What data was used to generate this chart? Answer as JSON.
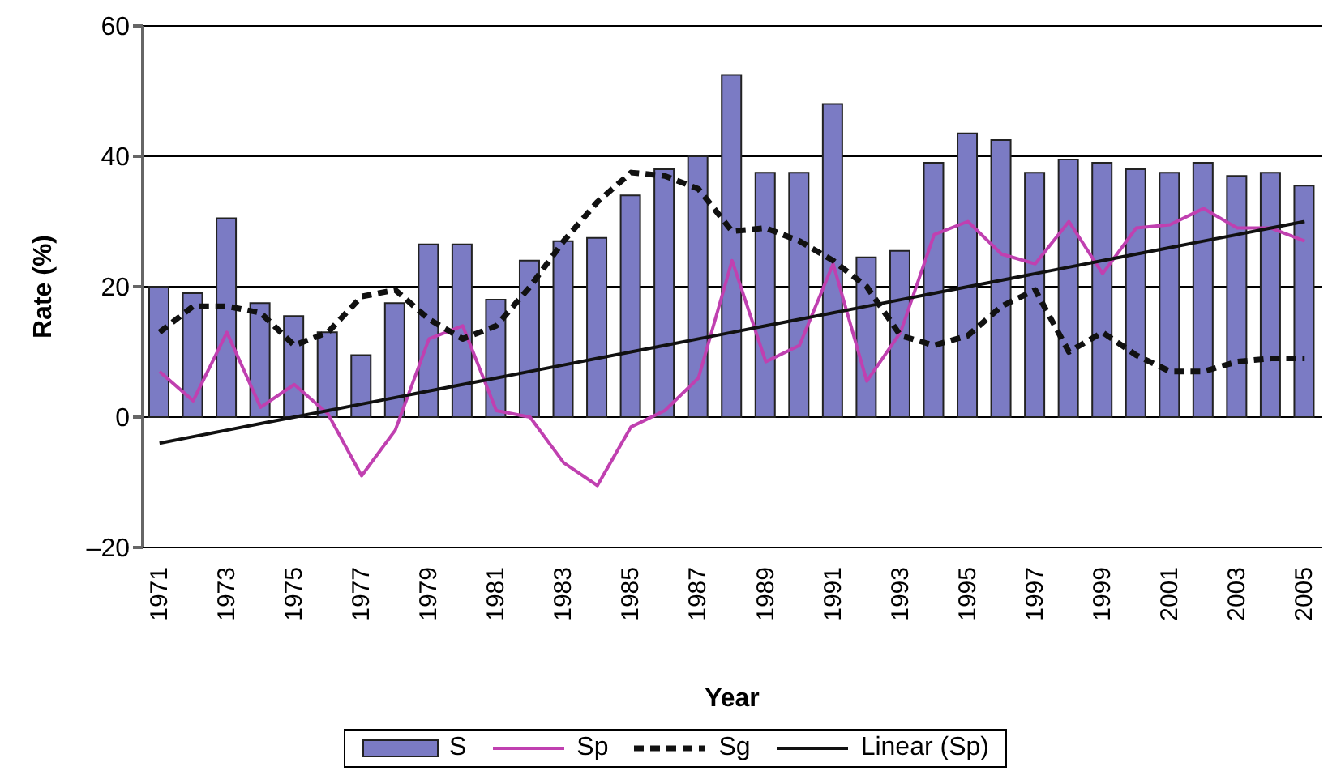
{
  "chart_data": {
    "type": "bar",
    "xlabel": "Year",
    "ylabel": "Rate (%)",
    "categories": [
      "1971",
      null,
      "1973",
      null,
      "1975",
      null,
      "1977",
      null,
      "1979",
      null,
      "1981",
      null,
      "1983",
      null,
      "1985",
      null,
      "1987",
      null,
      "1989",
      null,
      "1991",
      null,
      "1993",
      null,
      "1995",
      null,
      "1997",
      null,
      "1999",
      null,
      "2001",
      null,
      "2003",
      null,
      "2005"
    ],
    "series": [
      {
        "name": "S",
        "color": "#7b7bc4",
        "values": [
          20,
          19,
          30.5,
          17.5,
          15.5,
          13,
          9.5,
          17.5,
          26.5,
          26.5,
          18,
          24,
          27,
          27.5,
          34,
          38,
          40,
          52.5,
          37.5,
          37.5,
          48,
          24.5,
          25.5,
          39,
          43.5,
          42.5,
          37.5,
          39.5,
          39,
          38,
          37.5,
          39,
          37,
          37.5,
          35.5
        ]
      },
      {
        "name": "Sp",
        "type": "line",
        "color": "#c040b0",
        "line_style": "solid",
        "values": [
          7,
          2.5,
          13,
          1.5,
          5,
          0.5,
          -9,
          -2,
          12,
          14,
          1,
          0,
          -7,
          -10.5,
          -1.5,
          1,
          6,
          24,
          8.5,
          11,
          23.5,
          5.5,
          13,
          28,
          30,
          25,
          23.5,
          30,
          22,
          29,
          29.5,
          32,
          29,
          29,
          27
        ]
      },
      {
        "name": "Sg",
        "type": "line",
        "color": "#111111",
        "line_style": "dashed",
        "values": [
          13,
          17,
          17,
          16,
          11,
          13,
          18.5,
          19.5,
          15,
          12,
          14,
          20,
          27,
          33,
          37.5,
          37,
          35,
          28.5,
          29,
          27,
          24,
          20,
          12.5,
          11,
          12.5,
          17,
          19.5,
          10,
          13,
          9.5,
          7,
          7,
          8.5,
          9,
          9
        ]
      },
      {
        "name": "Linear (Sp)",
        "type": "line",
        "color": "#111111",
        "line_style": "solid",
        "values": [
          -4,
          -3,
          -2,
          -1,
          0,
          1,
          2,
          3,
          4,
          5,
          6,
          7,
          8,
          9,
          10,
          11,
          12,
          13,
          14,
          15,
          16,
          17,
          18,
          19,
          20,
          21,
          22,
          23,
          24,
          25,
          26,
          27,
          28,
          29,
          30
        ]
      }
    ],
    "ylim": [
      -20,
      60
    ],
    "yticks": [
      {
        "value": -20,
        "label": "–20"
      },
      0,
      20,
      40,
      60
    ],
    "grid": "y",
    "legend": "bottom",
    "marker": "none"
  }
}
